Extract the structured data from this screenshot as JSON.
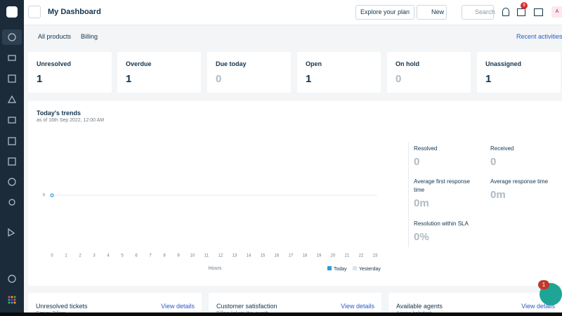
{
  "header": {
    "title": "My Dashboard",
    "explore": "Explore your plan",
    "new": "New",
    "search": "Search",
    "gift_badge": "9",
    "avatar": "A"
  },
  "filters": {
    "products": "All products",
    "group": "Billing",
    "recent": "Recent activities"
  },
  "cards": [
    {
      "label": "Unresolved",
      "value": 1
    },
    {
      "label": "Overdue",
      "value": 1
    },
    {
      "label": "Due today",
      "value": 0
    },
    {
      "label": "Open",
      "value": 1
    },
    {
      "label": "On hold",
      "value": 0
    },
    {
      "label": "Unassigned",
      "value": 1
    }
  ],
  "trends": {
    "title": "Today's trends",
    "subtitle": "as of 16th Sep 2022, 12:00 AM",
    "yticks": [
      0
    ],
    "xticks": [
      0,
      1,
      2,
      3,
      4,
      5,
      6,
      7,
      8,
      9,
      10,
      11,
      12,
      13,
      14,
      15,
      16,
      17,
      18,
      19,
      20,
      21,
      22,
      23
    ],
    "xlabel": "Hours",
    "today": [
      0
    ],
    "legend": [
      "Today",
      "Yesterday"
    ],
    "stats": [
      {
        "label": "Resolved",
        "value": "0"
      },
      {
        "label": "Received",
        "value": "0"
      },
      {
        "label": "Average first response time",
        "value": "0m"
      },
      {
        "label": "Average response time",
        "value": "0m"
      },
      {
        "label": "Resolution within SLA",
        "value": "0%"
      }
    ]
  },
  "bottom": [
    {
      "title": "Unresolved tickets",
      "link": "View details",
      "sub": "Group: Billing"
    },
    {
      "title": "Customer satisfaction",
      "link": "View details",
      "sub": "Billing tickets this month"
    },
    {
      "title": "Available agents",
      "link": "View details",
      "sub": "Across helpdesk"
    }
  ],
  "help_badge": "1"
}
